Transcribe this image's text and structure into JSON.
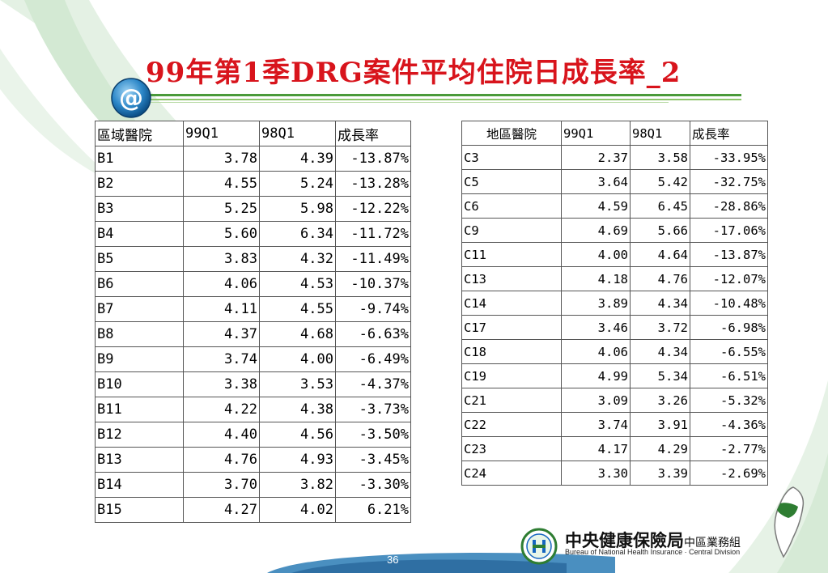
{
  "title": "99年第1季DRG案件平均住院日成長率_2",
  "page_number": "36",
  "logo": {
    "name_main": "中央健康保險局",
    "name_division": "中區業務組",
    "name_en": "Bureau of National Health Insurance · Central Division"
  },
  "colors": {
    "title": "#d8141c",
    "accent_green": "#4a9a3a",
    "swoosh_green": "#cfe8cf"
  },
  "table_left": {
    "headers": [
      "區域醫院",
      "99Q1",
      "98Q1",
      "成長率"
    ],
    "rows": [
      [
        "B1",
        "3.78",
        "4.39",
        "-13.87%"
      ],
      [
        "B2",
        "4.55",
        "5.24",
        "-13.28%"
      ],
      [
        "B3",
        "5.25",
        "5.98",
        "-12.22%"
      ],
      [
        "B4",
        "5.60",
        "6.34",
        "-11.72%"
      ],
      [
        "B5",
        "3.83",
        "4.32",
        "-11.49%"
      ],
      [
        "B6",
        "4.06",
        "4.53",
        "-10.37%"
      ],
      [
        "B7",
        "4.11",
        "4.55",
        "-9.74%"
      ],
      [
        "B8",
        "4.37",
        "4.68",
        "-6.63%"
      ],
      [
        "B9",
        "3.74",
        "4.00",
        "-6.49%"
      ],
      [
        "B10",
        "3.38",
        "3.53",
        "-4.37%"
      ],
      [
        "B11",
        "4.22",
        "4.38",
        "-3.73%"
      ],
      [
        "B12",
        "4.40",
        "4.56",
        "-3.50%"
      ],
      [
        "B13",
        "4.76",
        "4.93",
        "-3.45%"
      ],
      [
        "B14",
        "3.70",
        "3.82",
        "-3.30%"
      ],
      [
        "B15",
        "4.27",
        "4.02",
        "6.21%"
      ]
    ]
  },
  "table_right": {
    "headers": [
      "地區醫院",
      "99Q1",
      "98Q1",
      "成長率"
    ],
    "rows": [
      [
        "C3",
        "2.37",
        "3.58",
        "-33.95%"
      ],
      [
        "C5",
        "3.64",
        "5.42",
        "-32.75%"
      ],
      [
        "C6",
        "4.59",
        "6.45",
        "-28.86%"
      ],
      [
        "C9",
        "4.69",
        "5.66",
        "-17.06%"
      ],
      [
        "C11",
        "4.00",
        "4.64",
        "-13.87%"
      ],
      [
        "C13",
        "4.18",
        "4.76",
        "-12.07%"
      ],
      [
        "C14",
        "3.89",
        "4.34",
        "-10.48%"
      ],
      [
        "C17",
        "3.46",
        "3.72",
        "-6.98%"
      ],
      [
        "C18",
        "4.06",
        "4.34",
        "-6.55%"
      ],
      [
        "C19",
        "4.99",
        "5.34",
        "-6.51%"
      ],
      [
        "C21",
        "3.09",
        "3.26",
        "-5.32%"
      ],
      [
        "C22",
        "3.74",
        "3.91",
        "-4.36%"
      ],
      [
        "C23",
        "4.17",
        "4.29",
        "-2.77%"
      ],
      [
        "C24",
        "3.30",
        "3.39",
        "-2.69%"
      ]
    ]
  }
}
